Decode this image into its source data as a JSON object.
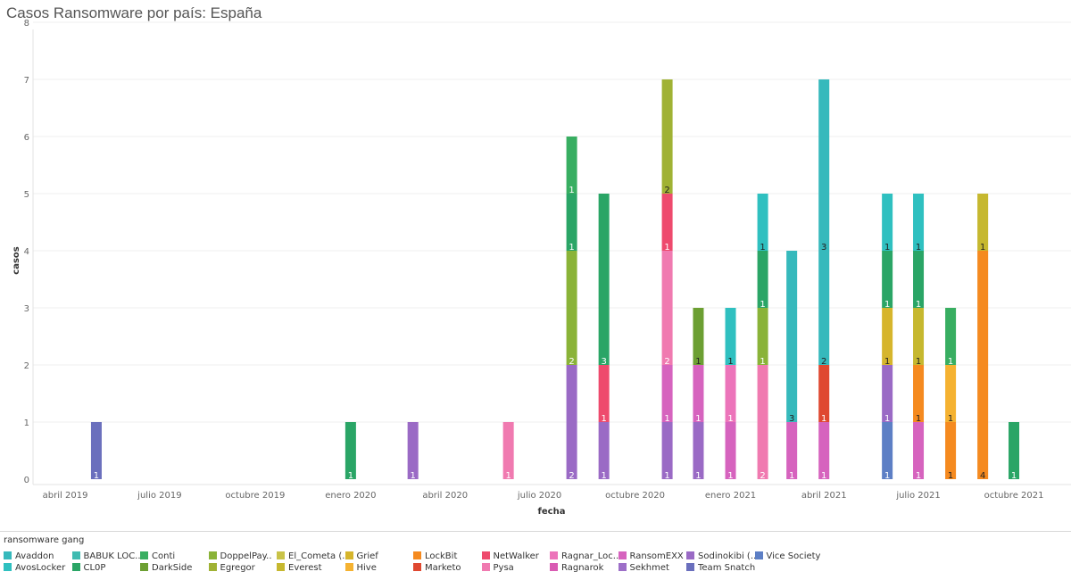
{
  "page": {
    "title": "Casos Ransomware por país: España"
  },
  "chart_data": {
    "type": "bar",
    "stacked": true,
    "title": "Casos Ransomware por país: España",
    "xlabel": "fecha",
    "ylabel": "casos",
    "ylim": [
      0,
      8
    ],
    "yticks": [
      0,
      1,
      2,
      3,
      4,
      5,
      6,
      7,
      8
    ],
    "xlim": [
      "2019-03-01",
      "2021-11-25"
    ],
    "xticks": [
      {
        "date": "2019-04-01",
        "label": "abril 2019"
      },
      {
        "date": "2019-07-01",
        "label": "julio 2019"
      },
      {
        "date": "2019-10-01",
        "label": "octubre 2019"
      },
      {
        "date": "2020-01-01",
        "label": "enero 2020"
      },
      {
        "date": "2020-04-01",
        "label": "abril 2020"
      },
      {
        "date": "2020-07-01",
        "label": "julio 2020"
      },
      {
        "date": "2020-10-01",
        "label": "octubre 2020"
      },
      {
        "date": "2021-01-01",
        "label": "enero 2021"
      },
      {
        "date": "2021-04-01",
        "label": "abril 2021"
      },
      {
        "date": "2021-07-01",
        "label": "julio 2021"
      },
      {
        "date": "2021-10-01",
        "label": "octubre 2021"
      }
    ],
    "stacks": [
      {
        "date": "2019-05-01",
        "segments": [
          {
            "gang": "Team Snatch",
            "value": 1
          }
        ]
      },
      {
        "date": "2020-01-01",
        "segments": [
          {
            "gang": "CL0P",
            "value": 1
          }
        ]
      },
      {
        "date": "2020-03-01",
        "segments": [
          {
            "gang": "Sodinokibi (REvil)",
            "value": 1
          }
        ]
      },
      {
        "date": "2020-06-01",
        "segments": [
          {
            "gang": "Pysa",
            "value": 1
          }
        ]
      },
      {
        "date": "2020-08-01",
        "segments": [
          {
            "gang": "Sodinokibi (REvil)",
            "value": 2
          },
          {
            "gang": "DoppelPaymer",
            "value": 2
          },
          {
            "gang": "CL0P",
            "value": 1
          },
          {
            "gang": "Conti",
            "value": 1
          }
        ]
      },
      {
        "date": "2020-09-01",
        "segments": [
          {
            "gang": "Sodinokibi (REvil)",
            "value": 1
          },
          {
            "gang": "NetWalker",
            "value": 1
          },
          {
            "gang": "CL0P",
            "value": 3
          }
        ]
      },
      {
        "date": "2020-11-01",
        "segments": [
          {
            "gang": "Sodinokibi (REvil)",
            "value": 1
          },
          {
            "gang": "RansomEXX",
            "value": 1
          },
          {
            "gang": "Pysa",
            "value": 2
          },
          {
            "gang": "NetWalker",
            "value": 1
          },
          {
            "gang": "Egregor",
            "value": 2
          }
        ]
      },
      {
        "date": "2020-12-01",
        "segments": [
          {
            "gang": "Sodinokibi (REvil)",
            "value": 1
          },
          {
            "gang": "RansomEXX",
            "value": 1
          },
          {
            "gang": "DarkSide",
            "value": 1
          }
        ]
      },
      {
        "date": "2021-01-01",
        "segments": [
          {
            "gang": "RansomEXX",
            "value": 1
          },
          {
            "gang": "Ragnar_Locker",
            "value": 1
          },
          {
            "gang": "AvosLocker",
            "value": 1
          }
        ]
      },
      {
        "date": "2021-02-01",
        "segments": [
          {
            "gang": "Pysa",
            "value": 2
          },
          {
            "gang": "DoppelPaymer",
            "value": 1
          },
          {
            "gang": "CL0P",
            "value": 1
          },
          {
            "gang": "AvosLocker",
            "value": 1
          }
        ]
      },
      {
        "date": "2021-03-01",
        "segments": [
          {
            "gang": "RansomEXX",
            "value": 1
          },
          {
            "gang": "Avaddon",
            "value": 3
          }
        ]
      },
      {
        "date": "2021-04-01",
        "segments": [
          {
            "gang": "RansomEXX",
            "value": 1
          },
          {
            "gang": "Marketo",
            "value": 1
          },
          {
            "gang": "Avaddon",
            "value": 2
          },
          {
            "gang": "Avaddon",
            "value": 3
          }
        ]
      },
      {
        "date": "2021-06-01",
        "segments": [
          {
            "gang": "Vice Society",
            "value": 1
          },
          {
            "gang": "Sodinokibi (REvil)",
            "value": 1
          },
          {
            "gang": "Grief",
            "value": 1
          },
          {
            "gang": "CL0P",
            "value": 1
          },
          {
            "gang": "AvosLocker",
            "value": 1
          }
        ]
      },
      {
        "date": "2021-07-01",
        "segments": [
          {
            "gang": "RansomEXX",
            "value": 1
          },
          {
            "gang": "LockBit",
            "value": 1
          },
          {
            "gang": "Everest",
            "value": 1
          },
          {
            "gang": "CL0P",
            "value": 1
          },
          {
            "gang": "AvosLocker",
            "value": 1
          }
        ]
      },
      {
        "date": "2021-08-01",
        "segments": [
          {
            "gang": "LockBit",
            "value": 1
          },
          {
            "gang": "Hive",
            "value": 1
          },
          {
            "gang": "Conti",
            "value": 1
          }
        ]
      },
      {
        "date": "2021-09-01",
        "segments": [
          {
            "gang": "LockBit",
            "value": 4
          },
          {
            "gang": "Everest",
            "value": 1
          }
        ]
      },
      {
        "date": "2021-10-01",
        "segments": [
          {
            "gang": "CL0P",
            "value": 1
          }
        ]
      }
    ],
    "legend_title": "ransomware gang",
    "legend_position": "bottom",
    "legend": [
      {
        "name": "Avaddon",
        "label": "Avaddon",
        "color": "#36b9bc"
      },
      {
        "name": "AvosLocker",
        "label": "AvosLocker",
        "color": "#2fc0c0"
      },
      {
        "name": "BABUK LOCKER",
        "label": "BABUK LOC..",
        "color": "#3fbbb1"
      },
      {
        "name": "CL0P",
        "label": "CL0P",
        "color": "#2aa566"
      },
      {
        "name": "Conti",
        "label": "Conti",
        "color": "#38ae61"
      },
      {
        "name": "DarkSide",
        "label": "DarkSide",
        "color": "#6c9f32"
      },
      {
        "name": "DoppelPaymer",
        "label": "DoppelPay..",
        "color": "#8ab338"
      },
      {
        "name": "Egregor",
        "label": "Egregor",
        "color": "#a0b234"
      },
      {
        "name": "El_Cometa",
        "label": "El_Cometa (..",
        "color": "#c9c348"
      },
      {
        "name": "Everest",
        "label": "Everest",
        "color": "#c6b82f"
      },
      {
        "name": "Grief",
        "label": "Grief",
        "color": "#d6b52c"
      },
      {
        "name": "Hive",
        "label": "Hive",
        "color": "#f5b231"
      },
      {
        "name": "LockBit",
        "label": "LockBit",
        "color": "#f58a1f"
      },
      {
        "name": "Marketo",
        "label": "Marketo",
        "color": "#df4830"
      },
      {
        "name": "NetWalker",
        "label": "NetWalker",
        "color": "#ee4a6d"
      },
      {
        "name": "Pysa",
        "label": "Pysa",
        "color": "#f07ab0"
      },
      {
        "name": "Ragnar_Locker",
        "label": "Ragnar_Loc..",
        "color": "#ec74ba"
      },
      {
        "name": "Ragnarok",
        "label": "Ragnarok",
        "color": "#d95bb3"
      },
      {
        "name": "RansomEXX",
        "label": "RansomEXX",
        "color": "#d663be"
      },
      {
        "name": "Sekhmet",
        "label": "Sekhmet",
        "color": "#9d6fc8"
      },
      {
        "name": "Sodinokibi (REvil)",
        "label": "Sodinokibi (..",
        "color": "#9a6ac5"
      },
      {
        "name": "Team Snatch",
        "label": "Team Snatch",
        "color": "#6a6fbd"
      },
      {
        "name": "Vice Society",
        "label": "Vice Society",
        "color": "#5d7fc5"
      }
    ]
  }
}
